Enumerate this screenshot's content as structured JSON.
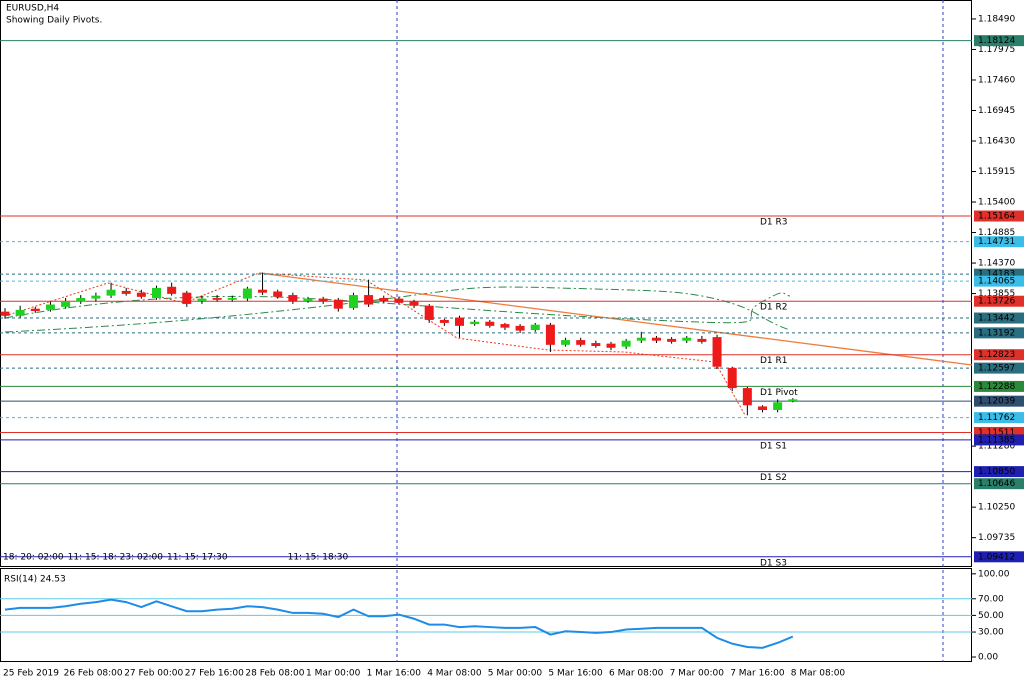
{
  "chart_data": [
    {
      "type": "candlestick",
      "title": "EURUSD,H4",
      "subtitle": "Showing Daily Pivots.",
      "categories": [
        "25 Feb 2019",
        null,
        null,
        null,
        "26 Feb 08:00",
        null,
        null,
        null,
        "27 Feb 00:00",
        null,
        null,
        null,
        "27 Feb 16:00",
        null,
        null,
        null,
        "28 Feb 08:00",
        null,
        null,
        null,
        "1 Mar 00:00",
        null,
        null,
        null,
        "1 Mar 16:00",
        null,
        null,
        null,
        "4 Mar 08:00",
        null,
        null,
        null,
        "5 Mar 00:00",
        null,
        null,
        null,
        "5 Mar 16:00",
        null,
        null,
        null,
        "6 Mar 08:00",
        null,
        null,
        null,
        "7 Mar 00:00",
        null,
        null,
        null,
        "7 Mar 16:00",
        null,
        null,
        null,
        "8 Mar 08:00"
      ],
      "open": [
        1.1355,
        1.1348,
        1.136,
        1.1358,
        1.1363,
        1.1372,
        1.1377,
        1.1382,
        1.139,
        1.1387,
        1.1378,
        1.1397,
        1.1387,
        1.1373,
        1.1378,
        1.1375,
        1.1377,
        1.1392,
        1.1389,
        1.1383,
        1.1373,
        1.1377,
        1.1375,
        1.1361,
        1.1383,
        1.1378,
        1.1377,
        1.1372,
        1.1365,
        1.1341,
        1.1345,
        1.1334,
        1.1338,
        1.1334,
        1.1331,
        1.1324,
        1.1333,
        1.1299,
        1.1307,
        1.1302,
        1.1301,
        1.1296,
        1.1306,
        1.1311,
        1.1309,
        1.1306,
        1.1309,
        1.1312,
        1.126,
        1.1226,
        1.1195,
        1.1189,
        1.1204
      ],
      "high": [
        1.1361,
        1.1365,
        1.1363,
        1.1372,
        1.1378,
        1.1383,
        1.1387,
        1.1404,
        1.1395,
        1.1392,
        1.1399,
        1.1404,
        1.139,
        1.1382,
        1.1383,
        1.1382,
        1.1397,
        1.1421,
        1.1392,
        1.1387,
        1.138,
        1.138,
        1.1378,
        1.1387,
        1.1409,
        1.1382,
        1.138,
        1.1375,
        1.1368,
        1.1343,
        1.1348,
        1.1341,
        1.1341,
        1.1336,
        1.1334,
        1.1336,
        1.1336,
        1.1311,
        1.1311,
        1.1306,
        1.1304,
        1.1309,
        1.1321,
        1.1314,
        1.1312,
        1.1314,
        1.1314,
        1.1316,
        1.1262,
        1.1228,
        1.1197,
        1.1207,
        1.1209
      ],
      "low": [
        1.1343,
        1.1345,
        1.1353,
        1.1355,
        1.136,
        1.1368,
        1.1372,
        1.1378,
        1.1382,
        1.1377,
        1.1375,
        1.1382,
        1.1363,
        1.1368,
        1.1372,
        1.1372,
        1.1373,
        1.1383,
        1.1377,
        1.1368,
        1.137,
        1.1368,
        1.1355,
        1.1358,
        1.1363,
        1.137,
        1.1367,
        1.1361,
        1.1336,
        1.1331,
        1.1311,
        1.1331,
        1.1328,
        1.1324,
        1.1319,
        1.1321,
        1.1287,
        1.1296,
        1.1296,
        1.1294,
        1.129,
        1.1292,
        1.1302,
        1.1302,
        1.1301,
        1.1302,
        1.1301,
        1.1258,
        1.1221,
        1.118,
        1.1185,
        1.1185,
        1.1202
      ],
      "close": [
        1.1348,
        1.1358,
        1.1356,
        1.1367,
        1.1373,
        1.1378,
        1.1382,
        1.1392,
        1.1385,
        1.138,
        1.1395,
        1.1385,
        1.1368,
        1.1377,
        1.1375,
        1.1378,
        1.1394,
        1.1387,
        1.138,
        1.1372,
        1.1377,
        1.1372,
        1.136,
        1.1383,
        1.1367,
        1.1373,
        1.137,
        1.1365,
        1.1341,
        1.1336,
        1.1331,
        1.1338,
        1.1331,
        1.1328,
        1.1323,
        1.1333,
        1.1299,
        1.1307,
        1.1299,
        1.1297,
        1.1294,
        1.1306,
        1.1311,
        1.1306,
        1.1304,
        1.1311,
        1.1304,
        1.1262,
        1.1226,
        1.1197,
        1.1189,
        1.1202,
        1.1207
      ],
      "up_color": "#1fd21f",
      "down_color": "#ee1a1a",
      "ylim": [
        1.0924,
        1.1881
      ],
      "yticks": [
        {
          "value": 1.1849,
          "label": "1.18490"
        },
        1.17975,
        {
          "value": 1.1746,
          "label": "1.17460"
        },
        1.16945,
        {
          "value": 1.1643,
          "label": "1.16430"
        },
        1.15915,
        {
          "value": 1.154,
          "label": "1.15400"
        },
        1.14885,
        {
          "value": 1.1437,
          "label": "1.14370"
        },
        1.13855,
        {
          "value": 1.1128,
          "label": "1.11280"
        },
        {
          "value": 1.1025,
          "label": "1.10250"
        },
        1.09735
      ],
      "levels": [
        {
          "value": 1.18124,
          "label": "1.18124",
          "color": "#2a7f6a",
          "style": "solid"
        },
        {
          "value": 1.15164,
          "label": "1.15164",
          "color": "#e0302a",
          "style": "solid",
          "name": "D1 R3"
        },
        {
          "value": 1.14731,
          "label": "1.14731",
          "color": "#3cbde8",
          "style": "dotted"
        },
        {
          "value": 1.14183,
          "label": "1.14183",
          "color": "#2a6f7f",
          "style": "dotted"
        },
        {
          "value": 1.14065,
          "label": "1.14065",
          "color": "#3cbde8",
          "style": "dotted"
        },
        {
          "value": 1.13726,
          "label": "1.13726",
          "color": "#e0302a",
          "style": "solid",
          "name": "D1 R2"
        },
        {
          "value": 1.13442,
          "label": "1.13442",
          "color": "#2a6f7f",
          "style": "dotted"
        },
        {
          "value": 1.13192,
          "label": "1.13192",
          "color": "#2a6f7f",
          "style": "dotted"
        },
        {
          "value": 1.12823,
          "label": "1.12823",
          "color": "#e0302a",
          "style": "solid",
          "name": "D1 R1"
        },
        {
          "value": 1.12597,
          "label": "1.12597",
          "color": "#2a6f7f",
          "style": "dotted"
        },
        {
          "value": 1.12288,
          "label": "1.12288",
          "color": "#2a8a3a",
          "style": "solid",
          "name": "D1 Pivot"
        },
        {
          "value": 1.12039,
          "label": "1.12039",
          "color": "#2f4f6f",
          "style": "solid"
        },
        {
          "value": 1.11762,
          "label": "1.11762",
          "color": "#3cbde8",
          "style": "dotted"
        },
        {
          "value": 1.11511,
          "label": "1.11511",
          "color": "#e0302a",
          "style": "solid"
        },
        {
          "value": 1.11385,
          "label": "1.11385",
          "color": "#2020b0",
          "style": "solid",
          "name": "D1 S1"
        },
        {
          "value": 1.1085,
          "label": "1.10850",
          "color": "#2020b0",
          "style": "solid",
          "name": "D1 S2"
        },
        {
          "value": 1.10646,
          "label": "1.10646",
          "color": "#2a7f6a",
          "style": "solid"
        },
        {
          "value": 1.09412,
          "label": "1.09412",
          "color": "#2020b0",
          "style": "solid",
          "name": "D1 S3"
        }
      ],
      "object_labels": [
        "18: 20: 02:00",
        "11: 15: 18: 23: 02:00",
        "11: 15: 17:30",
        "11: 15: 18:30"
      ]
    },
    {
      "type": "line",
      "title": "RSI(14) 24.53",
      "color": "#1e8ce6",
      "values": [
        57,
        59,
        59,
        59,
        61,
        64,
        66,
        69,
        66,
        60,
        67,
        61,
        55,
        55,
        57,
        58,
        61,
        60,
        57,
        53,
        53,
        52,
        48,
        57,
        49,
        49,
        51,
        46,
        39,
        39,
        36,
        37,
        36,
        35,
        35,
        36,
        27,
        31,
        30,
        29,
        30,
        33,
        34,
        35,
        35,
        35,
        35,
        23,
        16,
        12,
        11,
        17,
        24.53
      ],
      "ylim": [
        -6,
        107
      ],
      "yticks": [
        {
          "value": 100,
          "label": "100.00"
        },
        {
          "value": 70,
          "label": "70.00"
        },
        {
          "value": 50,
          "label": "50.00"
        },
        {
          "value": 30,
          "label": "30.00"
        },
        {
          "value": 0,
          "label": "0.00"
        }
      ],
      "levels": [
        70,
        50,
        30
      ]
    }
  ]
}
